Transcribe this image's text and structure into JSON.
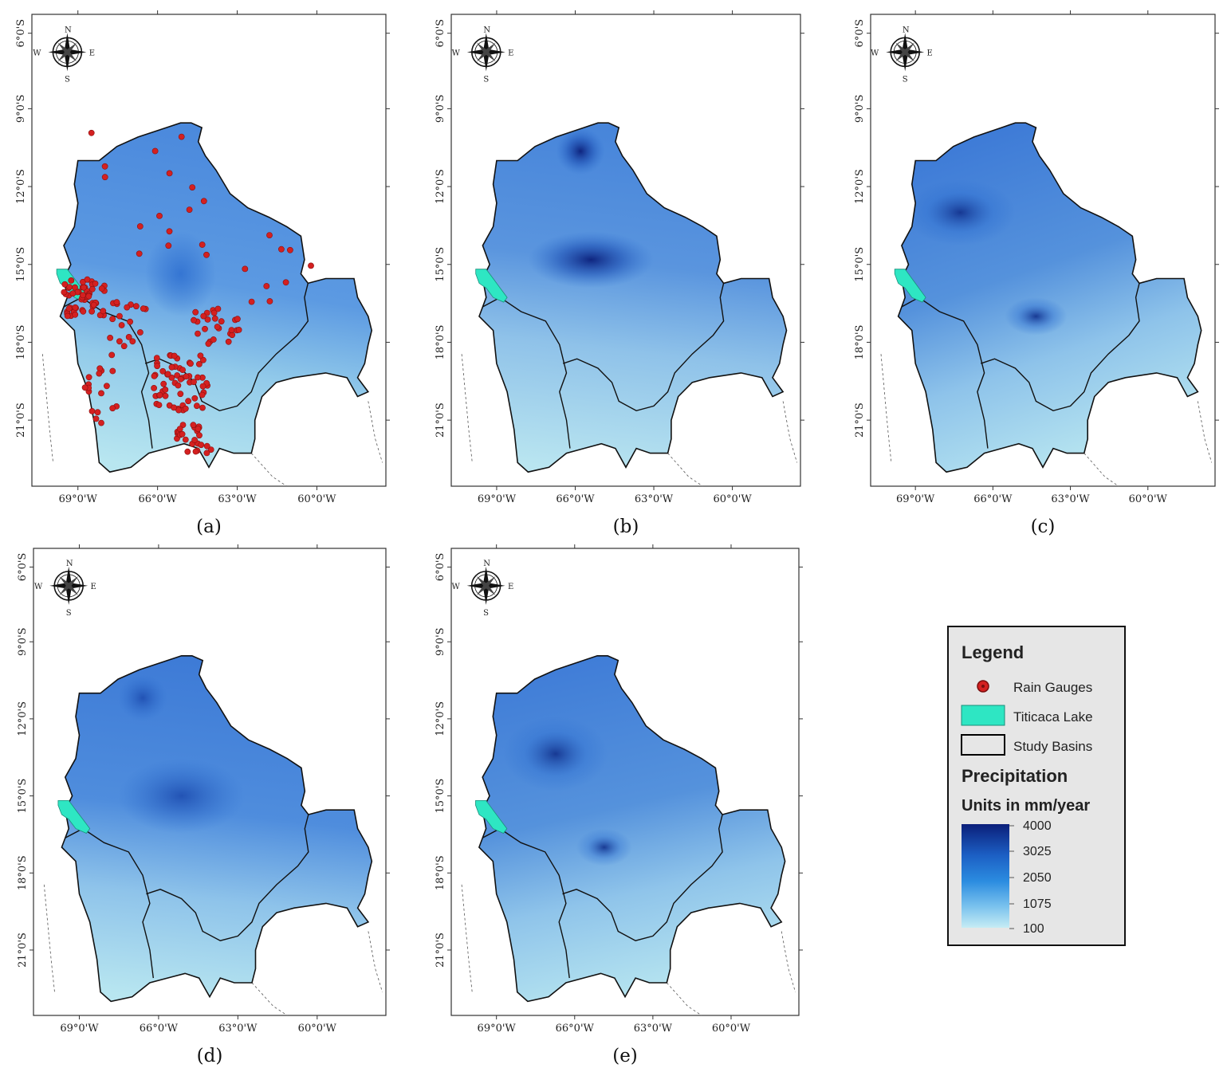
{
  "panels": [
    {
      "id": "a",
      "caption": "(a)",
      "show_gauges": true
    },
    {
      "id": "b",
      "caption": "(b)",
      "show_gauges": false
    },
    {
      "id": "c",
      "caption": "(c)",
      "show_gauges": false
    },
    {
      "id": "d",
      "caption": "(d)",
      "show_gauges": false
    },
    {
      "id": "e",
      "caption": "(e)",
      "show_gauges": false
    }
  ],
  "lat_ticks": [
    "6°0'S",
    "9°0'S",
    "12°0'S",
    "15°0'S",
    "18°0'S",
    "21°0'S"
  ],
  "lon_ticks": [
    "69°0'W",
    "66°0'W",
    "63°0'W",
    "60°0'W"
  ],
  "compass": {
    "n": "N",
    "s": "S",
    "e": "E",
    "w": "W"
  },
  "legend": {
    "title": "Legend",
    "items": [
      {
        "label": "Rain Gauges",
        "symbol": "red-dot",
        "color": "#d42020"
      },
      {
        "label": "Titicaca Lake",
        "symbol": "cyan-rect",
        "color": "#2ee6c3"
      },
      {
        "label": "Study Basins",
        "symbol": "outline-rect",
        "color": "#000000"
      }
    ],
    "variable": "Precipitation",
    "units": "Units in mm/year",
    "scale_labels": [
      "4000",
      "3025",
      "2050",
      "1075",
      "100"
    ],
    "scale_colors": [
      "#0b1f7a",
      "#1c5fc4",
      "#2b8ce0",
      "#7cc3ee",
      "#c6ecf4"
    ]
  },
  "colors": {
    "lake": "#2ee6c3",
    "gauge": "#d42020",
    "map_mid": "#4d8ee0",
    "map_low": "#b2e3ef"
  }
}
